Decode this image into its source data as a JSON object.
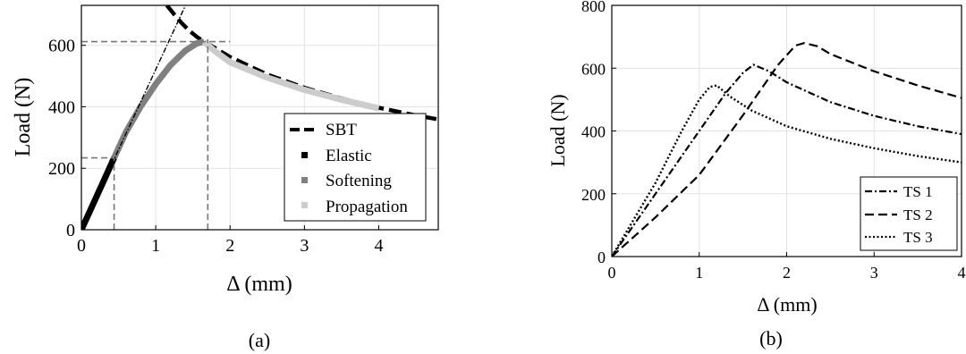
{
  "chart_data": [
    {
      "panel_label": "(a)",
      "type": "line",
      "xlabel": "Δ (mm)",
      "ylabel": "Load (N)",
      "xlim": [
        0,
        4.8
      ],
      "ylim": [
        0,
        730
      ],
      "xticks": [
        0,
        1,
        2,
        3,
        4
      ],
      "yticks": [
        0,
        200,
        400,
        600
      ],
      "grid": true,
      "legend_position": "bottom-right",
      "series": [
        {
          "name": "SBT",
          "style": "thick-dashed",
          "color": "#000000",
          "x": [
            1.15,
            1.25,
            1.35,
            1.45,
            1.55,
            1.65,
            1.75,
            2.0,
            2.5,
            3.0,
            3.5,
            4.0,
            4.5,
            4.8
          ],
          "y": [
            730,
            700,
            672,
            648,
            628,
            612,
            598,
            562,
            505,
            462,
            427,
            397,
            372,
            359
          ]
        },
        {
          "name": "Elastic",
          "style": "thick-solid",
          "color": "#000000",
          "x": [
            0,
            0.1,
            0.2,
            0.3,
            0.44
          ],
          "y": [
            0,
            53,
            106,
            159,
            234
          ]
        },
        {
          "name": "Softening",
          "style": "thick-solid",
          "color": "#808080",
          "x": [
            0.44,
            0.6,
            0.8,
            1.0,
            1.2,
            1.4,
            1.55,
            1.65
          ],
          "y": [
            234,
            318,
            402,
            474,
            536,
            583,
            606,
            612
          ]
        },
        {
          "name": "Propagation",
          "style": "thick-solid",
          "color": "#cccccc",
          "x": [
            1.65,
            1.8,
            2.0,
            2.5,
            3.0,
            3.5,
            4.0
          ],
          "y": [
            612,
            580,
            545,
            495,
            455,
            423,
            395
          ]
        },
        {
          "name": "",
          "style": "thin-dashdot",
          "color": "#000000",
          "x": [
            0,
            1.4
          ],
          "y": [
            0,
            730
          ]
        },
        {
          "name": "",
          "style": "guide-dashed",
          "color": "#777777",
          "x": [
            0,
            2.0
          ],
          "y": [
            612,
            612
          ]
        },
        {
          "name": "",
          "style": "guide-dashed",
          "color": "#777777",
          "x": [
            1.7,
            1.7
          ],
          "y": [
            0,
            620
          ]
        },
        {
          "name": "",
          "style": "guide-dashed",
          "color": "#777777",
          "x": [
            0,
            0.44
          ],
          "y": [
            234,
            234
          ]
        },
        {
          "name": "",
          "style": "guide-dashed",
          "color": "#777777",
          "x": [
            0.44,
            0.44
          ],
          "y": [
            0,
            234
          ]
        }
      ]
    },
    {
      "panel_label": "(b)",
      "type": "line",
      "xlabel": "Δ (mm)",
      "ylabel": "Load (N)",
      "xlim": [
        0,
        4
      ],
      "ylim": [
        0,
        800
      ],
      "xticks": [
        0,
        1,
        2,
        3,
        4
      ],
      "yticks": [
        0,
        200,
        400,
        600,
        800
      ],
      "grid": true,
      "legend_position": "bottom-right",
      "series": [
        {
          "name": "TS 1",
          "style": "dashdot",
          "color": "#000000",
          "x": [
            0,
            0.5,
            1.0,
            1.3,
            1.5,
            1.62,
            1.8,
            2.0,
            2.5,
            3.0,
            3.5,
            4.0
          ],
          "y": [
            0,
            200,
            400,
            520,
            585,
            611,
            590,
            555,
            492,
            448,
            415,
            390
          ]
        },
        {
          "name": "TS 2",
          "style": "dashed",
          "color": "#000000",
          "x": [
            0,
            0.5,
            1.0,
            1.5,
            1.9,
            2.1,
            2.2,
            2.35,
            2.5,
            3.0,
            3.5,
            4.0
          ],
          "y": [
            0,
            125,
            260,
            450,
            610,
            672,
            680,
            670,
            645,
            590,
            545,
            505
          ]
        },
        {
          "name": "TS 3",
          "style": "dotted",
          "color": "#000000",
          "x": [
            0,
            0.5,
            0.8,
            1.0,
            1.12,
            1.2,
            1.35,
            1.6,
            2.0,
            2.5,
            3.0,
            3.5,
            4.0
          ],
          "y": [
            0,
            235,
            400,
            500,
            540,
            545,
            510,
            465,
            415,
            375,
            345,
            320,
            300
          ]
        }
      ]
    }
  ]
}
